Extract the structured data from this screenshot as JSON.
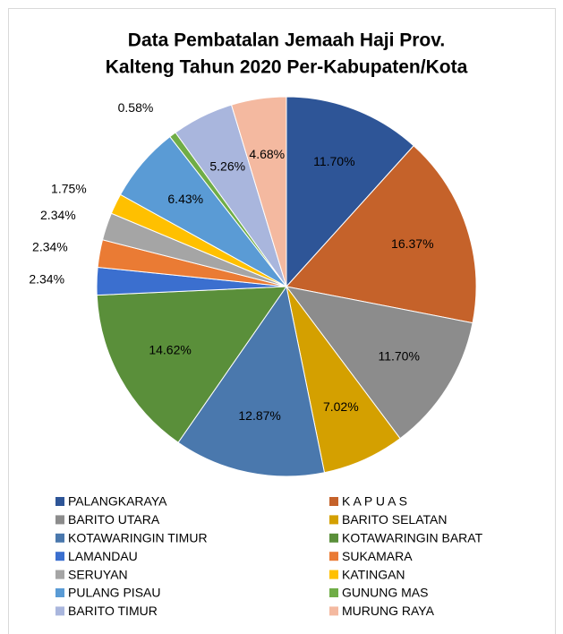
{
  "chart_data": {
    "type": "pie",
    "title": [
      "Data Pembatalan Jemaah Haji Prov.",
      "Kalteng Tahun 2020 Per-Kabupaten/Kota"
    ],
    "categories": [
      "PALANGKARAYA",
      "K A P U A S",
      "BARITO UTARA",
      "BARITO SELATAN",
      "KOTAWARINGIN TIMUR",
      "KOTAWARINGIN BARAT",
      "LAMANDAU",
      "SUKAMARA",
      "SERUYAN",
      "KATINGAN",
      "PULANG PISAU",
      "GUNUNG MAS",
      "BARITO TIMUR",
      "MURUNG RAYA"
    ],
    "values": [
      11.7,
      16.37,
      11.7,
      7.02,
      12.87,
      14.62,
      2.34,
      2.34,
      2.34,
      1.75,
      6.43,
      0.58,
      5.26,
      4.68
    ],
    "value_labels": [
      "11.70%",
      "16.37%",
      "11.70%",
      "7.02%",
      "12.87%",
      "14.62%",
      "2.34%",
      "2.34%",
      "2.34%",
      "1.75%",
      "6.43%",
      "0.58%",
      "5.26%",
      "4.68%"
    ],
    "colors": [
      "#2e5597",
      "#c5622a",
      "#8c8c8c",
      "#d4a000",
      "#4a78ad",
      "#5a8f3a",
      "#3b6fcf",
      "#ea7b34",
      "#a5a5a5",
      "#ffc000",
      "#5a9bd5",
      "#70ad47",
      "#a9b6dd",
      "#f4b9a0"
    ],
    "legend": "bottom"
  }
}
